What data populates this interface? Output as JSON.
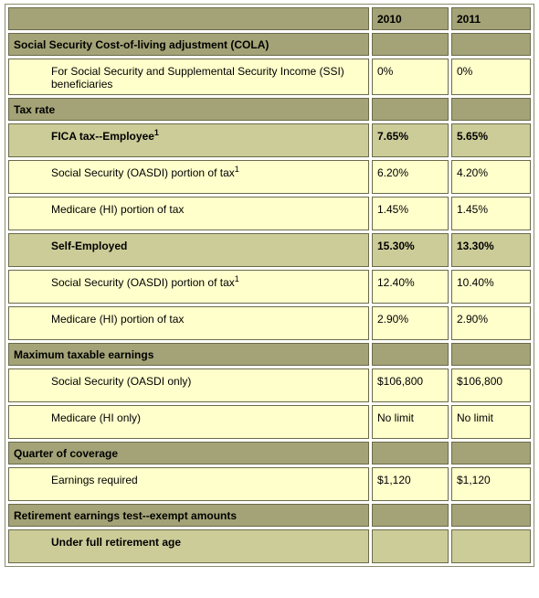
{
  "table": {
    "columns": [
      "2010",
      "2011"
    ],
    "sections": [
      {
        "title": "Social Security Cost-of-living adjustment (COLA)",
        "rows": [
          {
            "label": "For Social Security and Supplemental Security Income (SSI) beneficiaries",
            "values": [
              "0%",
              "0%"
            ]
          }
        ]
      },
      {
        "title": "Tax rate",
        "rows": [
          {
            "label": "FICA tax--Employee",
            "sup": "1",
            "values": [
              "7.65%",
              "5.65%"
            ],
            "emphasis": true
          },
          {
            "label": "Social Security (OASDI) portion of tax",
            "sup": "1",
            "values": [
              "6.20%",
              "4.20%"
            ]
          },
          {
            "label": "Medicare (HI) portion of tax",
            "values": [
              "1.45%",
              "1.45%"
            ]
          },
          {
            "label": "Self-Employed",
            "values": [
              "15.30%",
              "13.30%"
            ],
            "emphasis": true
          },
          {
            "label": "Social Security (OASDI) portion of tax",
            "sup": "1",
            "values": [
              "12.40%",
              "10.40%"
            ]
          },
          {
            "label": "Medicare (HI) portion of tax",
            "values": [
              "2.90%",
              "2.90%"
            ]
          }
        ]
      },
      {
        "title": "Maximum taxable earnings",
        "rows": [
          {
            "label": "Social Security (OASDI only)",
            "values": [
              "$106,800",
              "$106,800"
            ]
          },
          {
            "label": "Medicare (HI only)",
            "values": [
              "No limit",
              "No limit"
            ]
          }
        ]
      },
      {
        "title": "Quarter of coverage",
        "rows": [
          {
            "label": "Earnings required",
            "values": [
              "$1,120",
              "$1,120"
            ]
          }
        ]
      },
      {
        "title": "Retirement earnings test--exempt amounts",
        "rows": [
          {
            "label": "Under full retirement age",
            "emphasis": true
          }
        ]
      }
    ]
  }
}
